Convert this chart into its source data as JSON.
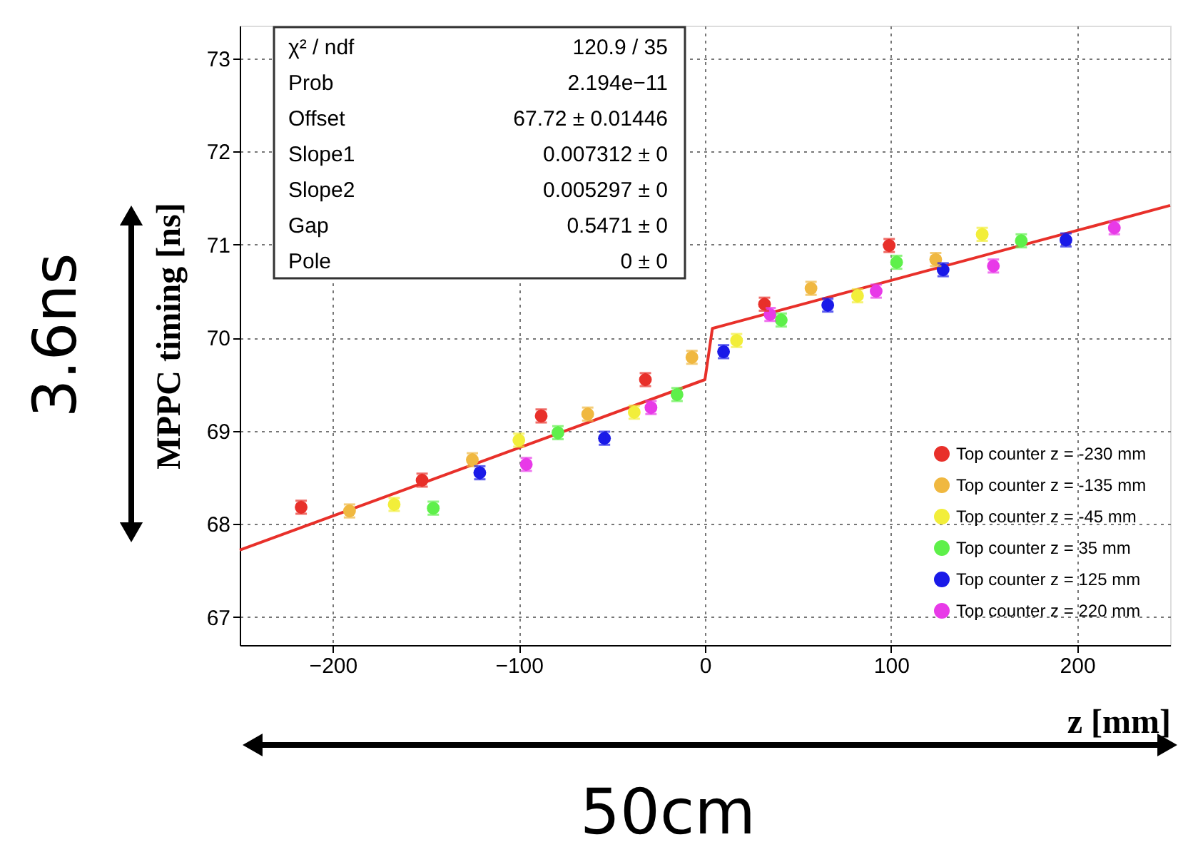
{
  "chart_data": {
    "type": "scatter",
    "xlabel": "z [mm]",
    "ylabel": "MPPC timing [ns]",
    "xlim": [
      -250,
      250
    ],
    "ylim": [
      66.7,
      73.35
    ],
    "xticks": [
      -200,
      -100,
      0,
      100,
      200
    ],
    "yticks": [
      67,
      68,
      69,
      70,
      71,
      72,
      73
    ],
    "grid": true,
    "legend": "bottom right",
    "marker": "circle",
    "series": [
      {
        "name": "Top counter z = -230 mm",
        "color": "#e8302a",
        "x": [
          -217,
          -152,
          -88,
          -32,
          32,
          99
        ],
        "values": [
          68.18,
          68.47,
          69.16,
          69.55,
          70.36,
          70.99
        ],
        "errors": [
          0.07,
          0.07,
          0.07,
          0.07,
          0.07,
          0.07
        ]
      },
      {
        "name": "Top counter z = -135 mm",
        "color": "#f0b840",
        "x": [
          -191,
          -125,
          -63,
          -7,
          57,
          124
        ],
        "values": [
          68.14,
          68.69,
          69.18,
          69.79,
          70.53,
          70.84
        ],
        "errors": [
          0.07,
          0.07,
          0.07,
          0.07,
          0.07,
          0.07
        ]
      },
      {
        "name": "Top counter z = -45 mm",
        "color": "#f2ee3a",
        "x": [
          -167,
          -100,
          -38,
          17,
          82,
          149
        ],
        "values": [
          68.21,
          68.9,
          69.2,
          69.97,
          70.45,
          71.11
        ],
        "errors": [
          0.07,
          0.07,
          0.07,
          0.07,
          0.07,
          0.07
        ]
      },
      {
        "name": "Top counter z = 35 mm",
        "color": "#5ef04a",
        "x": [
          -146,
          -79,
          -15,
          41,
          103,
          170
        ],
        "values": [
          68.17,
          68.98,
          69.39,
          70.19,
          70.81,
          71.04
        ],
        "errors": [
          0.07,
          0.07,
          0.07,
          0.07,
          0.07,
          0.07
        ]
      },
      {
        "name": "Top counter z = 125 mm",
        "color": "#1a1ae8",
        "x": [
          -121,
          -54,
          10,
          66,
          128,
          194
        ],
        "values": [
          68.55,
          68.92,
          69.85,
          70.35,
          70.73,
          71.05
        ],
        "errors": [
          0.07,
          0.07,
          0.07,
          0.07,
          0.07,
          0.07
        ]
      },
      {
        "name": "Top counter z = 220 mm",
        "color": "#e83ae8",
        "x": [
          -96,
          -29,
          35,
          92,
          155,
          220
        ],
        "values": [
          68.64,
          69.25,
          70.25,
          70.5,
          70.77,
          71.18
        ],
        "errors": [
          0.07,
          0.07,
          0.07,
          0.07,
          0.07,
          0.07
        ]
      },
      {
        "type": "line",
        "marker": "none",
        "color": "#e8302a",
        "x": [
          -250,
          0,
          4,
          250
        ],
        "values": [
          67.72,
          69.55,
          70.1,
          71.42
        ]
      }
    ],
    "annotations": [
      "χ² / ndf",
      "120.9 / 35",
      "Prob",
      "2.194e−11",
      "Offset",
      "67.72 ± 0.01446",
      "Slope1",
      "0.007312 ±   0",
      "Slope2",
      "0.005297 ±   0",
      "Gap",
      "0.5471 ±   0",
      "Pole",
      "0 ±   0",
      "3.6ns",
      "50cm"
    ]
  }
}
